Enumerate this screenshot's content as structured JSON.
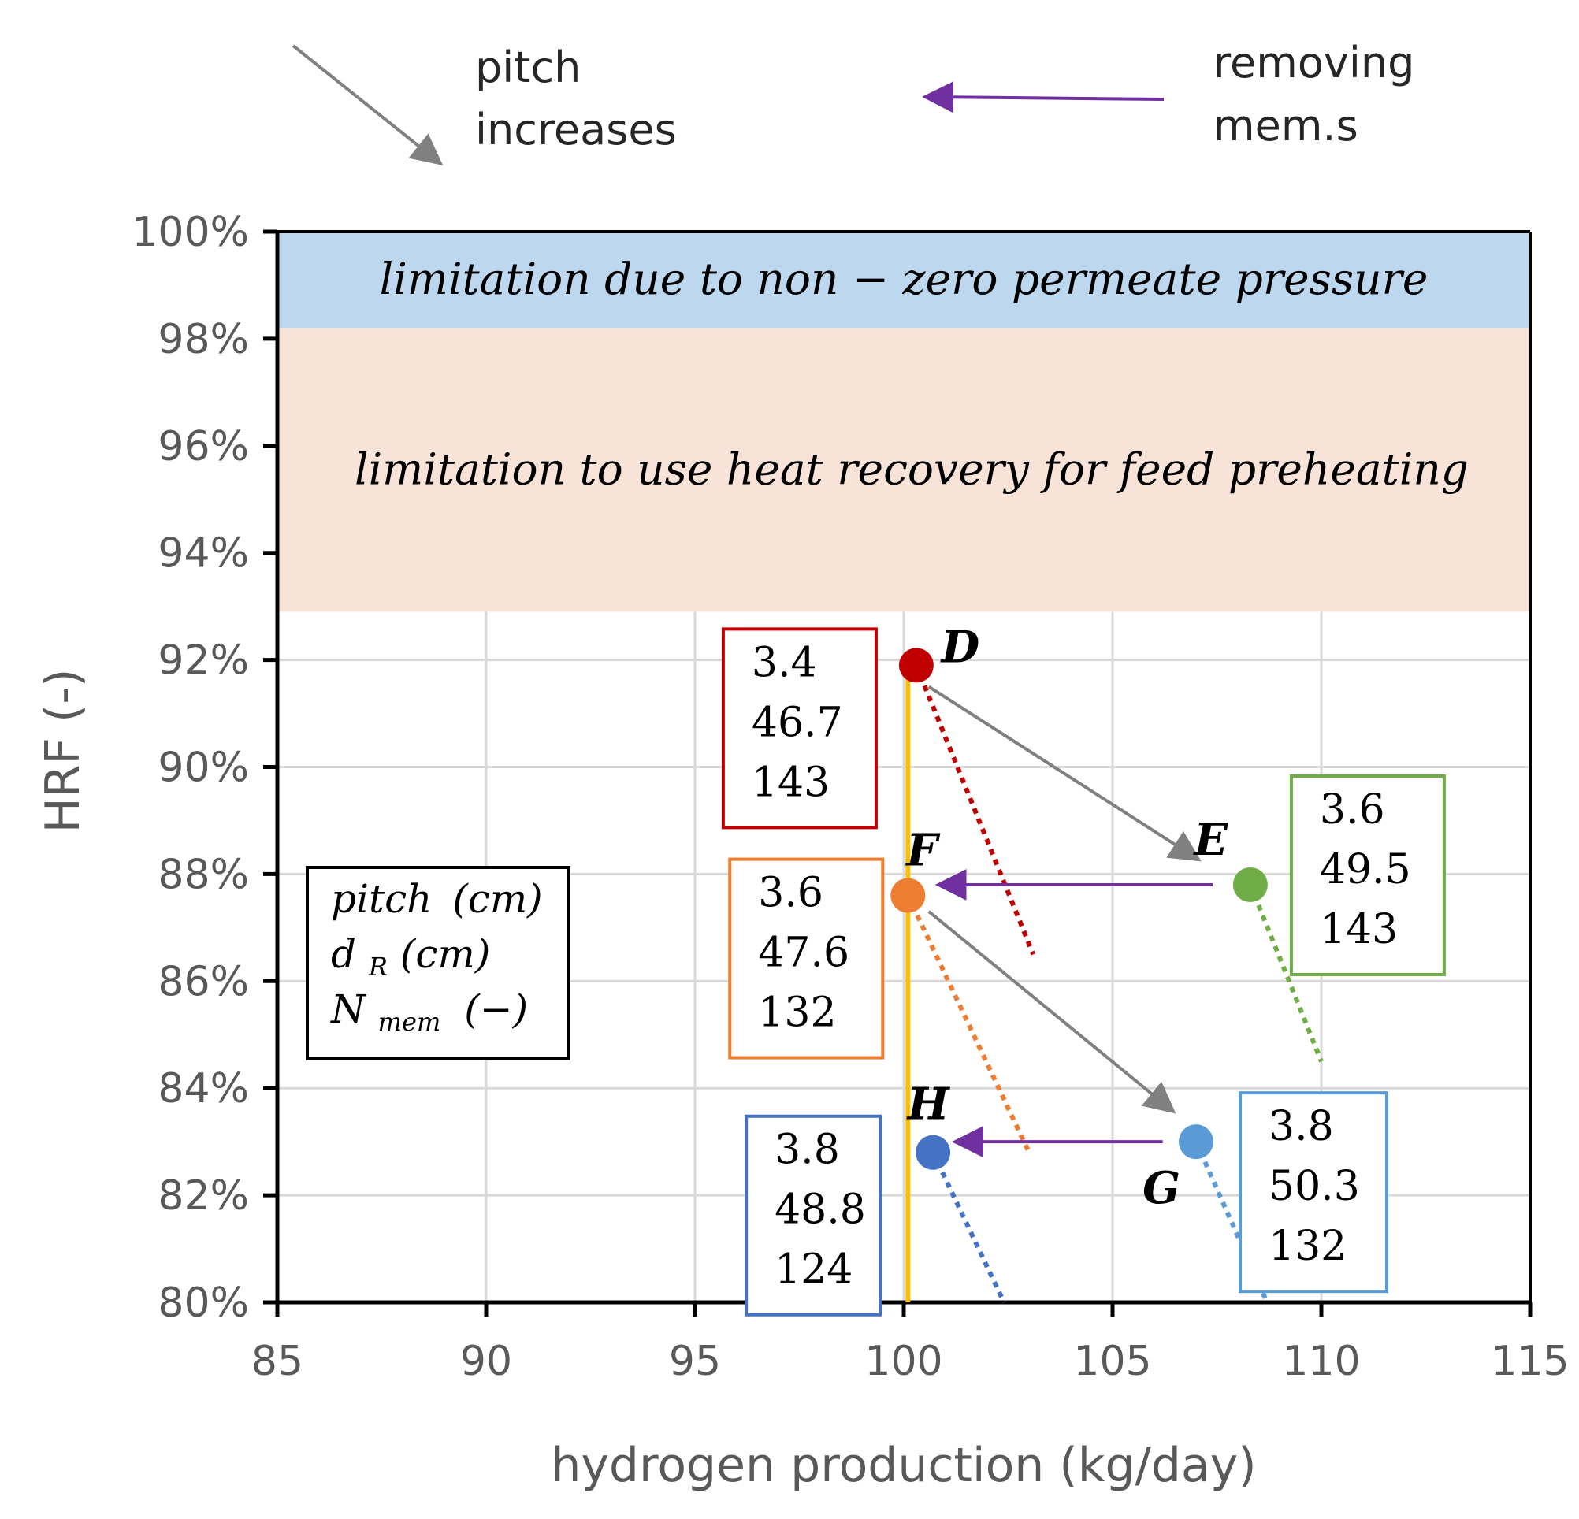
{
  "chart_data": {
    "type": "scatter",
    "xlabel": "hydrogen production (kg/day)",
    "ylabel": "HRF (-)",
    "xlim": [
      85,
      115
    ],
    "ylim": [
      0.8,
      1.0
    ],
    "x_ticks": [
      85,
      90,
      95,
      100,
      105,
      110,
      115
    ],
    "y_ticks": [
      0.8,
      0.82,
      0.84,
      0.86,
      0.88,
      0.9,
      0.92,
      0.94,
      0.96,
      0.98,
      1.0
    ],
    "x_tick_labels": [
      "85",
      "90",
      "95",
      "100",
      "105",
      "110",
      "115"
    ],
    "y_tick_labels": [
      "80%",
      "82%",
      "84%",
      "86%",
      "88%",
      "90%",
      "92%",
      "94%",
      "96%",
      "98%",
      "100%"
    ],
    "grid": true,
    "bands": [
      {
        "y_from": 0.982,
        "y_to": 1.0,
        "color": "#bdd7ee",
        "label": "limitation due to non − zero permeate pressure"
      },
      {
        "y_from": 0.929,
        "y_to": 0.982,
        "color": "#f8e3d8",
        "label": "limitation to use heat recovery for feed preheating"
      }
    ],
    "vertical_line": {
      "x": 100.1,
      "y_from": 0.8,
      "y_to": 0.919,
      "color": "#ffc000"
    },
    "points": [
      {
        "id": "D",
        "x": 100.3,
        "y": 0.919,
        "color": "#c00000",
        "pitch": "3.4",
        "dR": "46.7",
        "Nmem": "143",
        "trend_to": {
          "x": 103.1,
          "y": 0.865
        }
      },
      {
        "id": "E",
        "x": 108.3,
        "y": 0.878,
        "color": "#70ad47",
        "pitch": "3.6",
        "dR": "49.5",
        "Nmem": "143",
        "trend_to": {
          "x": 110.0,
          "y": 0.845
        }
      },
      {
        "id": "F",
        "x": 100.1,
        "y": 0.876,
        "color": "#ed7d31",
        "pitch": "3.6",
        "dR": "47.6",
        "Nmem": "132",
        "trend_to": {
          "x": 103.0,
          "y": 0.828
        }
      },
      {
        "id": "G",
        "x": 107.0,
        "y": 0.83,
        "color": "#5b9bd5",
        "pitch": "3.8",
        "dR": "50.3",
        "Nmem": "132",
        "trend_to": {
          "x": 108.7,
          "y": 0.8
        }
      },
      {
        "id": "H",
        "x": 100.7,
        "y": 0.828,
        "color": "#4472c4",
        "pitch": "3.8",
        "dR": "48.8",
        "Nmem": "124",
        "trend_to": {
          "x": 102.4,
          "y": 0.8
        }
      }
    ],
    "arrows": [
      {
        "kind": "pitch",
        "from": [
          100.6,
          0.915
        ],
        "to": [
          107.0,
          0.883
        ],
        "color": "#808080"
      },
      {
        "kind": "pitch",
        "from": [
          100.6,
          0.873
        ],
        "to": [
          106.4,
          0.836
        ],
        "color": "#808080"
      },
      {
        "kind": "removing",
        "from": [
          107.4,
          0.878
        ],
        "to": [
          100.9,
          0.878
        ],
        "color": "#7030a0"
      },
      {
        "kind": "removing",
        "from": [
          106.2,
          0.83
        ],
        "to": [
          101.3,
          0.83
        ],
        "color": "#7030a0"
      }
    ],
    "legend": {
      "pitch_label": "pitch",
      "pitch_unit": "(cm)",
      "dR_label": "d",
      "dR_sub": "R",
      "dR_unit": "(cm)",
      "N_label": "N",
      "N_sub": "mem",
      "N_unit": "(−)"
    },
    "annotations": {
      "pitch_line1": "pitch",
      "pitch_line2": "increases",
      "removing_line1": "removing",
      "removing_line2": "mem.s"
    }
  }
}
